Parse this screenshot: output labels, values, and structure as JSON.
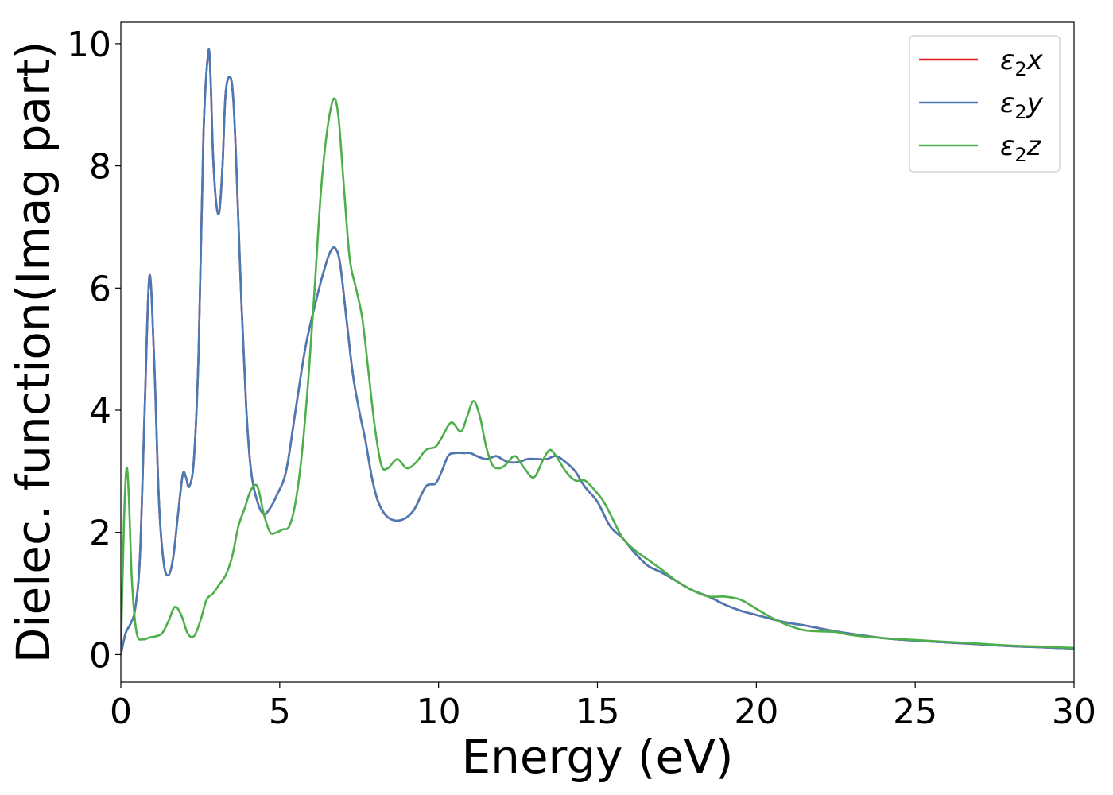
{
  "chart_data": {
    "type": "line",
    "title": "",
    "xlabel": "Energy (eV)",
    "ylabel": "Dielec. function(Imag part)",
    "xlim": [
      0,
      30
    ],
    "ylim": [
      -0.45,
      10.35
    ],
    "xticks": [
      0,
      5,
      10,
      15,
      20,
      25,
      30
    ],
    "yticks": [
      0,
      2,
      4,
      6,
      8,
      10
    ],
    "grid": false,
    "legend_position": "top-right",
    "series": [
      {
        "name": "ε₂x",
        "legend_prefix": "ε",
        "legend_sub": "2",
        "legend_suffix": "x",
        "color": "#e41a1c",
        "x": [
          0,
          0.15,
          0.3,
          0.45,
          0.6,
          0.75,
          0.9,
          1.05,
          1.2,
          1.35,
          1.5,
          1.65,
          1.8,
          1.95,
          2.05,
          2.15,
          2.3,
          2.45,
          2.6,
          2.75,
          2.82,
          2.9,
          3.0,
          3.1,
          3.2,
          3.3,
          3.45,
          3.55,
          3.65,
          3.8,
          3.95,
          4.1,
          4.3,
          4.5,
          4.7,
          4.9,
          5.2,
          5.5,
          5.8,
          6.1,
          6.4,
          6.6,
          6.75,
          6.9,
          7.1,
          7.3,
          7.5,
          7.7,
          7.9,
          8.1,
          8.4,
          8.8,
          9.2,
          9.6,
          9.9,
          10.1,
          10.3,
          10.5,
          10.8,
          11.0,
          11.2,
          11.5,
          11.8,
          12.0,
          12.2,
          12.5,
          12.8,
          13.1,
          13.4,
          13.7,
          14.0,
          14.3,
          14.6,
          15.0,
          15.4,
          15.8,
          16.2,
          16.6,
          17.0,
          17.5,
          18.0,
          18.5,
          19.0,
          19.5,
          20.0,
          20.5,
          21.0,
          21.5,
          22.0,
          22.5,
          23.0,
          24.0,
          25.0,
          26.0,
          27.0,
          28.0,
          29.0,
          30.0
        ],
        "values": [
          0.0,
          0.35,
          0.5,
          0.75,
          1.6,
          4.0,
          6.2,
          4.8,
          2.5,
          1.5,
          1.3,
          1.6,
          2.3,
          2.95,
          2.9,
          2.75,
          3.2,
          5.0,
          8.5,
          9.85,
          9.5,
          8.2,
          7.4,
          7.25,
          8.0,
          9.2,
          9.45,
          9.0,
          7.8,
          5.7,
          4.0,
          3.0,
          2.5,
          2.3,
          2.4,
          2.6,
          3.0,
          4.0,
          5.0,
          5.7,
          6.3,
          6.6,
          6.65,
          6.4,
          5.5,
          4.6,
          4.0,
          3.5,
          2.9,
          2.5,
          2.25,
          2.2,
          2.35,
          2.75,
          2.8,
          3.0,
          3.25,
          3.3,
          3.3,
          3.3,
          3.25,
          3.2,
          3.25,
          3.2,
          3.15,
          3.15,
          3.2,
          3.2,
          3.2,
          3.25,
          3.15,
          3.0,
          2.75,
          2.5,
          2.1,
          1.9,
          1.65,
          1.45,
          1.35,
          1.2,
          1.05,
          0.95,
          0.82,
          0.72,
          0.65,
          0.58,
          0.52,
          0.48,
          0.43,
          0.38,
          0.34,
          0.27,
          0.23,
          0.2,
          0.17,
          0.14,
          0.12,
          0.1
        ]
      },
      {
        "name": "ε₂y",
        "legend_prefix": "ε",
        "legend_sub": "2",
        "legend_suffix": "y",
        "color": "#4a7ab5",
        "x": [
          0,
          0.15,
          0.3,
          0.45,
          0.6,
          0.75,
          0.9,
          1.05,
          1.2,
          1.35,
          1.5,
          1.65,
          1.8,
          1.95,
          2.05,
          2.15,
          2.3,
          2.45,
          2.6,
          2.75,
          2.82,
          2.9,
          3.0,
          3.1,
          3.2,
          3.3,
          3.45,
          3.55,
          3.65,
          3.8,
          3.95,
          4.1,
          4.3,
          4.5,
          4.7,
          4.9,
          5.2,
          5.5,
          5.8,
          6.1,
          6.4,
          6.6,
          6.75,
          6.9,
          7.1,
          7.3,
          7.5,
          7.7,
          7.9,
          8.1,
          8.4,
          8.8,
          9.2,
          9.6,
          9.9,
          10.1,
          10.3,
          10.5,
          10.8,
          11.0,
          11.2,
          11.5,
          11.8,
          12.0,
          12.2,
          12.5,
          12.8,
          13.1,
          13.4,
          13.7,
          14.0,
          14.3,
          14.6,
          15.0,
          15.4,
          15.8,
          16.2,
          16.6,
          17.0,
          17.5,
          18.0,
          18.5,
          19.0,
          19.5,
          20.0,
          20.5,
          21.0,
          21.5,
          22.0,
          22.5,
          23.0,
          24.0,
          25.0,
          26.0,
          27.0,
          28.0,
          29.0,
          30.0
        ],
        "values": [
          0.0,
          0.35,
          0.5,
          0.75,
          1.6,
          4.0,
          6.2,
          4.8,
          2.5,
          1.5,
          1.3,
          1.6,
          2.3,
          2.95,
          2.9,
          2.75,
          3.2,
          5.0,
          8.5,
          9.85,
          9.5,
          8.2,
          7.4,
          7.25,
          8.0,
          9.2,
          9.45,
          9.0,
          7.8,
          5.7,
          4.0,
          3.0,
          2.5,
          2.3,
          2.4,
          2.6,
          3.0,
          4.0,
          5.0,
          5.7,
          6.3,
          6.6,
          6.65,
          6.4,
          5.5,
          4.6,
          4.0,
          3.5,
          2.9,
          2.5,
          2.25,
          2.2,
          2.35,
          2.75,
          2.8,
          3.0,
          3.25,
          3.3,
          3.3,
          3.3,
          3.25,
          3.2,
          3.25,
          3.2,
          3.15,
          3.15,
          3.2,
          3.2,
          3.2,
          3.25,
          3.15,
          3.0,
          2.75,
          2.5,
          2.1,
          1.9,
          1.65,
          1.45,
          1.35,
          1.2,
          1.05,
          0.95,
          0.82,
          0.72,
          0.65,
          0.58,
          0.52,
          0.48,
          0.43,
          0.38,
          0.34,
          0.27,
          0.23,
          0.2,
          0.17,
          0.14,
          0.12,
          0.1
        ]
      },
      {
        "name": "ε₂z",
        "legend_prefix": "ε",
        "legend_sub": "2",
        "legend_suffix": "z",
        "color": "#4daf4a",
        "x": [
          0,
          0.1,
          0.18,
          0.25,
          0.35,
          0.5,
          0.7,
          0.9,
          1.1,
          1.3,
          1.5,
          1.7,
          1.9,
          2.1,
          2.3,
          2.5,
          2.7,
          2.9,
          3.1,
          3.3,
          3.5,
          3.7,
          3.9,
          4.1,
          4.3,
          4.5,
          4.7,
          4.9,
          5.1,
          5.3,
          5.5,
          5.7,
          5.9,
          6.1,
          6.3,
          6.5,
          6.7,
          6.85,
          7.0,
          7.2,
          7.4,
          7.6,
          7.8,
          8.0,
          8.2,
          8.4,
          8.7,
          9.0,
          9.3,
          9.6,
          9.9,
          10.1,
          10.4,
          10.7,
          10.9,
          11.1,
          11.3,
          11.5,
          11.7,
          11.9,
          12.1,
          12.4,
          12.7,
          13.0,
          13.3,
          13.5,
          13.7,
          14.0,
          14.3,
          14.6,
          14.9,
          15.2,
          15.5,
          15.8,
          16.2,
          16.6,
          17.0,
          17.5,
          18.0,
          18.5,
          19.0,
          19.5,
          20.0,
          20.5,
          21.0,
          21.5,
          22.0,
          22.5,
          23.0,
          24.0,
          25.0,
          26.0,
          27.0,
          28.0,
          29.0,
          30.0
        ],
        "values": [
          0.0,
          2.2,
          3.05,
          2.6,
          1.2,
          0.35,
          0.25,
          0.28,
          0.3,
          0.35,
          0.55,
          0.78,
          0.65,
          0.35,
          0.3,
          0.55,
          0.9,
          1.0,
          1.15,
          1.3,
          1.6,
          2.1,
          2.4,
          2.7,
          2.75,
          2.3,
          2.0,
          2.0,
          2.05,
          2.1,
          2.5,
          3.3,
          4.5,
          6.0,
          7.6,
          8.6,
          9.1,
          8.8,
          7.8,
          6.5,
          6.0,
          5.5,
          4.6,
          3.7,
          3.1,
          3.05,
          3.2,
          3.05,
          3.15,
          3.35,
          3.4,
          3.55,
          3.8,
          3.65,
          3.9,
          4.15,
          3.9,
          3.4,
          3.1,
          3.05,
          3.1,
          3.25,
          3.05,
          2.9,
          3.2,
          3.35,
          3.25,
          3.0,
          2.85,
          2.85,
          2.7,
          2.5,
          2.2,
          1.9,
          1.7,
          1.55,
          1.4,
          1.2,
          1.05,
          0.95,
          0.95,
          0.9,
          0.75,
          0.6,
          0.48,
          0.4,
          0.38,
          0.37,
          0.32,
          0.27,
          0.24,
          0.21,
          0.18,
          0.15,
          0.13,
          0.11
        ]
      }
    ]
  }
}
